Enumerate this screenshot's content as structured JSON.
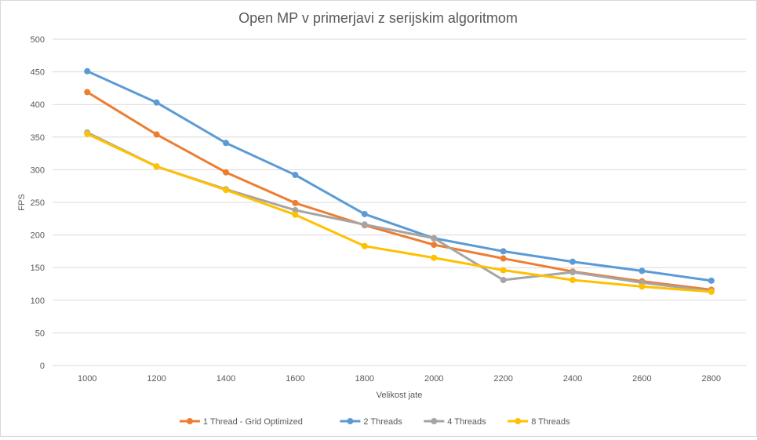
{
  "chart_data": {
    "type": "line",
    "title": "Open MP v primerjavi z serijskim algoritmom",
    "xlabel": "Velikost jate",
    "ylabel": "FPS",
    "ylim": [
      0,
      500
    ],
    "yticks": [
      0,
      50,
      100,
      150,
      200,
      250,
      300,
      350,
      400,
      450,
      500
    ],
    "categories": [
      "1000",
      "1200",
      "1400",
      "1600",
      "1800",
      "2000",
      "2200",
      "2400",
      "2600",
      "2800"
    ],
    "grid": true,
    "legend_position": "bottom",
    "series": [
      {
        "name": "1 Thread - Grid Optimized",
        "color": "#ED7D31",
        "values": [
          419,
          354,
          296,
          249,
          215,
          185,
          164,
          144,
          129,
          116
        ]
      },
      {
        "name": "2 Threads",
        "color": "#5B9BD5",
        "values": [
          451,
          403,
          341,
          292,
          232,
          195,
          175,
          159,
          145,
          130
        ]
      },
      {
        "name": "4 Threads",
        "color": "#A5A5A5",
        "values": [
          357,
          305,
          270,
          238,
          216,
          195,
          131,
          143,
          127,
          114
        ]
      },
      {
        "name": "8 Threads",
        "color": "#FFC000",
        "values": [
          355,
          305,
          269,
          231,
          183,
          165,
          146,
          131,
          121,
          113
        ]
      }
    ]
  }
}
